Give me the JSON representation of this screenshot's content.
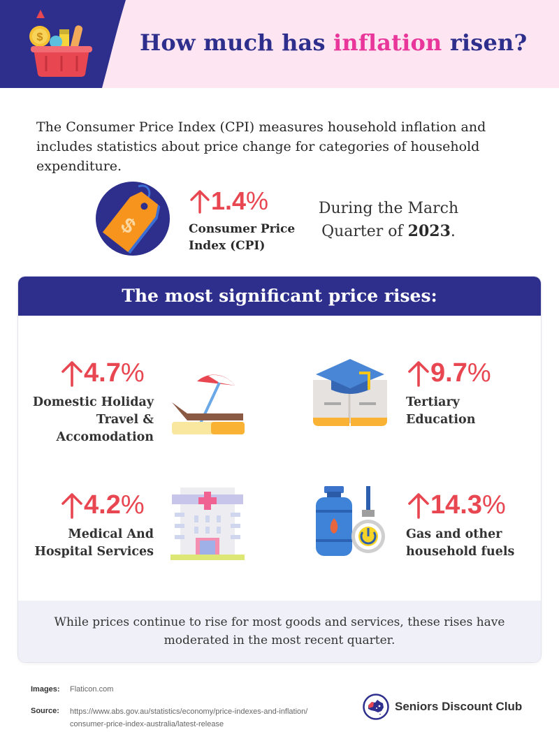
{
  "header": {
    "title_part1": "How much has ",
    "title_highlight": "inflation",
    "title_part2": " risen?",
    "basket_icon": "shopping-basket-icon"
  },
  "intro": "The Consumer Price Index (CPI) measures household inflation and includes statistics about price change for categories of household expenditure.",
  "cpi": {
    "icon": "price-tag-dollar-icon",
    "value": "1.4",
    "unit": "%",
    "label": "Consumer Price Index (CPI)",
    "period_text": "During the March Quarter of ",
    "period_year": "2023",
    "period_end": "."
  },
  "section": {
    "title": "The most significant price rises:",
    "items": [
      {
        "value": "4.7",
        "unit": "%",
        "label": "Domestic Holiday Travel & Accomodation",
        "icon": "beach-umbrella-lounger-icon"
      },
      {
        "value": "9.7",
        "unit": "%",
        "label": "Tertiary Education",
        "icon": "graduation-cap-book-icon"
      },
      {
        "value": "4.2",
        "unit": "%",
        "label": "Medical And Hospital Services",
        "icon": "hospital-building-icon"
      },
      {
        "value": "14.3",
        "unit": "%",
        "label": "Gas and other household fuels",
        "icon": "gas-cylinder-meter-icon"
      }
    ],
    "footnote": "While prices continue to rise for most goods and services, these rises have moderated in the most recent quarter."
  },
  "footer": {
    "images_label": "Images:",
    "images_value": "Flaticon.com",
    "source_label": "Source:",
    "source_line1": "https://www.abs.gov.au/statistics/economy/price-indexes-and-inflation/",
    "source_line2": "consumer-price-index-australia/latest-release",
    "brand_name": "Seniors Discount Club",
    "brand_icon": "australia-map-logo-icon"
  },
  "colors": {
    "navy": "#2e2f8c",
    "pink_highlight": "#e8369a",
    "header_bg": "#fde6f2",
    "rise_red": "#e84650",
    "footnote_bg": "#f0f0f9"
  }
}
